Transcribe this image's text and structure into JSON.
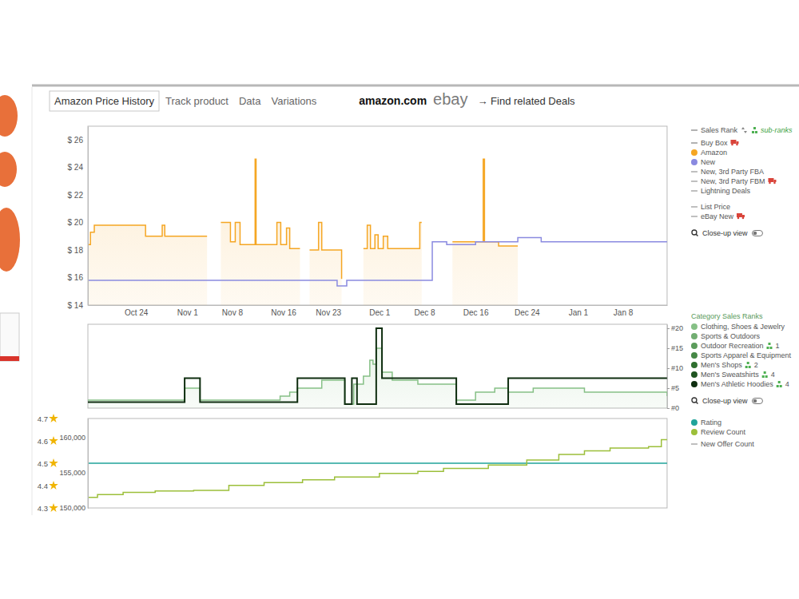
{
  "header": {
    "tabs": [
      "Amazon Price History",
      "Track product",
      "Data",
      "Variations"
    ],
    "stores": [
      "amazon.com",
      "ebay"
    ],
    "deals_link": "→ Find related Deals"
  },
  "chart_data": [
    {
      "type": "line",
      "line_style": "step",
      "legend": "right",
      "grid": false,
      "closeup_label": "Close-up view",
      "xlim": [
        -7.5,
        82.9
      ],
      "xticks": [
        {
          "value": 0,
          "label": "Oct 24"
        },
        {
          "value": 8,
          "label": "Nov 1"
        },
        {
          "value": 15,
          "label": "Nov 8"
        },
        {
          "value": 23,
          "label": "Nov 16"
        },
        {
          "value": 30,
          "label": "Nov 23"
        },
        {
          "value": 38,
          "label": "Dec 1"
        },
        {
          "value": 45,
          "label": "Dec 8"
        },
        {
          "value": 53,
          "label": "Dec 16"
        },
        {
          "value": 61,
          "label": "Dec 24"
        },
        {
          "value": 69,
          "label": "Jan 1"
        },
        {
          "value": 76,
          "label": "Jan 8"
        }
      ],
      "ylim": [
        14,
        27
      ],
      "yticks": [
        {
          "value": 14,
          "label": "$ 14"
        },
        {
          "value": 16,
          "label": "$ 16"
        },
        {
          "value": 18,
          "label": "$ 18"
        },
        {
          "value": 20,
          "label": "$ 20"
        },
        {
          "value": 22,
          "label": "$ 22"
        },
        {
          "value": 24,
          "label": "$ 24"
        },
        {
          "value": 26,
          "label": "$ 26"
        }
      ],
      "series": [
        {
          "name": "Sales Rank",
          "color": "#999999",
          "marker": "line",
          "link": "sub-ranks",
          "x": [],
          "values": []
        },
        {
          "name": "Buy Box",
          "color": "#999999",
          "marker": "line",
          "x": [],
          "values": []
        },
        {
          "name": "Amazon",
          "color": "#f5a623",
          "marker": "dot",
          "type": "area",
          "x": [
            -7.5,
            -7.1,
            -6.5,
            1.5,
            4.1,
            4.5,
            11.1,
            11.2,
            13.25,
            14.75,
            15.5,
            16.25,
            18.6,
            18.75,
            22.0,
            22.6,
            23.5,
            24.0,
            25.6,
            25.7,
            27.1,
            28.5,
            29.0,
            32.1,
            32.2,
            35.5,
            36.1,
            36.6,
            37.3,
            37.8,
            38.6,
            39.3,
            44.3,
            44.6,
            44.7,
            49.4,
            54.2,
            54.4,
            56.6,
            59.6,
            59.7
          ],
          "values": [
            18.4,
            19.3,
            19.8,
            19.0,
            19.8,
            19.0,
            19.0,
            null,
            20,
            18.6,
            20,
            18.4,
            24.6,
            18.4,
            20,
            18.4,
            19.6,
            18.1,
            18.1,
            null,
            18,
            20,
            18,
            15.9,
            null,
            18.1,
            19.8,
            18.1,
            19.1,
            18.1,
            19,
            18.1,
            20,
            20,
            null,
            18.6,
            24.6,
            18.6,
            18.3,
            18.3,
            null
          ]
        },
        {
          "name": "New",
          "color": "#8a8ae0",
          "marker": "dot",
          "x": [
            -7.5,
            31.4,
            32.9,
            46.25,
            48.5,
            53.0,
            59.6,
            63.25,
            82.9
          ],
          "values": [
            15.8,
            15.4,
            15.8,
            18.6,
            18.4,
            18.6,
            18.9,
            18.6,
            18.6
          ]
        },
        {
          "name": "New, 3rd Party FBA",
          "color": "#aaaaaa",
          "marker": "line",
          "x": [],
          "values": []
        },
        {
          "name": "New, 3rd Party FBM",
          "color": "#aaaaaa",
          "marker": "line",
          "x": [],
          "values": []
        },
        {
          "name": "Lightning Deals",
          "color": "#aaaaaa",
          "marker": "line",
          "x": [],
          "values": []
        },
        {
          "name": "List Price",
          "color": "#aaaaaa",
          "marker": "line",
          "x": [],
          "values": []
        },
        {
          "name": "eBay New",
          "color": "#aaaaaa",
          "marker": "line",
          "x": [],
          "values": []
        }
      ]
    },
    {
      "type": "line",
      "line_style": "step",
      "legend": "right",
      "grid": false,
      "tick_labels": "y",
      "legend_title": "Category Sales Ranks",
      "closeup_label": "Close-up view",
      "xlim": [
        -7.5,
        82.9
      ],
      "ylim": [
        0,
        21
      ],
      "yticks": [
        {
          "value": 0,
          "label": "#0"
        },
        {
          "value": 5,
          "label": "#5"
        },
        {
          "value": 10,
          "label": "#10"
        },
        {
          "value": 15,
          "label": "#15"
        },
        {
          "value": 20,
          "label": "#20"
        }
      ],
      "series": [
        {
          "name": "Clothing, Shoes & Jewelry",
          "color": "#86c086",
          "marker": "dot",
          "type": "area",
          "x": [
            -7.5,
            7.6,
            10.0,
            22.5,
            24.0,
            25.2,
            29.0,
            32.6,
            34.0,
            35.5,
            36.5,
            37.0,
            37.5,
            38.4,
            40.0,
            44.0,
            48.0,
            50.0,
            53.0,
            56.0,
            58.1,
            62.0,
            70.0,
            80.0,
            82.9
          ],
          "values": [
            2,
            5,
            2,
            3,
            4,
            5,
            7,
            1,
            6,
            8,
            12,
            11,
            15,
            9,
            7,
            6,
            6,
            2,
            4,
            5,
            4,
            5,
            4,
            4,
            3
          ]
        },
        {
          "name": "Sports & Outdoors",
          "color": "#72ae72",
          "marker": "dot",
          "x": [],
          "values": []
        },
        {
          "name": "Outdoor Recreation",
          "color": "#5c9c5c",
          "marker": "dot",
          "sub_ranks": 1,
          "x": [],
          "values": []
        },
        {
          "name": "Sports Apparel & Equipment",
          "color": "#468846",
          "marker": "dot",
          "x": [],
          "values": []
        },
        {
          "name": "Men's Shops",
          "color": "#2f6f2f",
          "marker": "dot",
          "sub_ranks": 2,
          "x": [],
          "values": []
        },
        {
          "name": "Men's Sweatshirts",
          "color": "#1f5420",
          "marker": "dot",
          "sub_ranks": 4,
          "x": [],
          "values": []
        },
        {
          "name": "Men's Athletic Hoodies",
          "color": "#0f2e10",
          "marker": "dot",
          "sub_ranks": 4,
          "x": [
            -7.5,
            7.6,
            10.0,
            25.2,
            32.6,
            33.7,
            34.5,
            37.5,
            38.4,
            50.0,
            58.1,
            82.9
          ],
          "values": [
            1.5,
            7.5,
            1.5,
            7.5,
            1,
            7.5,
            1,
            20,
            7.5,
            1,
            7.5,
            7.5
          ]
        }
      ]
    },
    {
      "type": "line",
      "line_style": "step",
      "legend": "right",
      "grid": false,
      "tick_labels": "y",
      "xlim": [
        -7.5,
        82.9
      ],
      "ylim": [
        4.3,
        4.7
      ],
      "yticks": [
        4.3,
        4.4,
        4.5,
        4.6,
        4.7
      ],
      "y2lim": [
        150000,
        162700
      ],
      "y2ticks": [
        {
          "value": 150000,
          "label": "150,000"
        },
        {
          "value": 155000,
          "label": "155,000"
        },
        {
          "value": 160000,
          "label": "160,000"
        }
      ],
      "series": [
        {
          "name": "Rating",
          "color": "#1fa39a",
          "marker": "dot",
          "x": [
            -7.5,
            82.9
          ],
          "values": [
            4.5,
            4.5
          ]
        },
        {
          "name": "Review Count",
          "color": "#9cbf3a",
          "marker": "dot",
          "axis": "y2",
          "x": [
            -7.5,
            -6,
            -2,
            3,
            9,
            14.5,
            20,
            26,
            31,
            38,
            44,
            48,
            55,
            61,
            66,
            70,
            74,
            80,
            82,
            82.9
          ],
          "values": [
            151500,
            151900,
            152200,
            152400,
            152500,
            153200,
            153600,
            154000,
            154400,
            154900,
            155200,
            155600,
            156100,
            156800,
            157600,
            158100,
            158500,
            158700,
            159700,
            159700
          ]
        },
        {
          "name": "New Offer Count",
          "color": "#aaaaaa",
          "marker": "line",
          "x": [],
          "values": []
        }
      ]
    }
  ]
}
